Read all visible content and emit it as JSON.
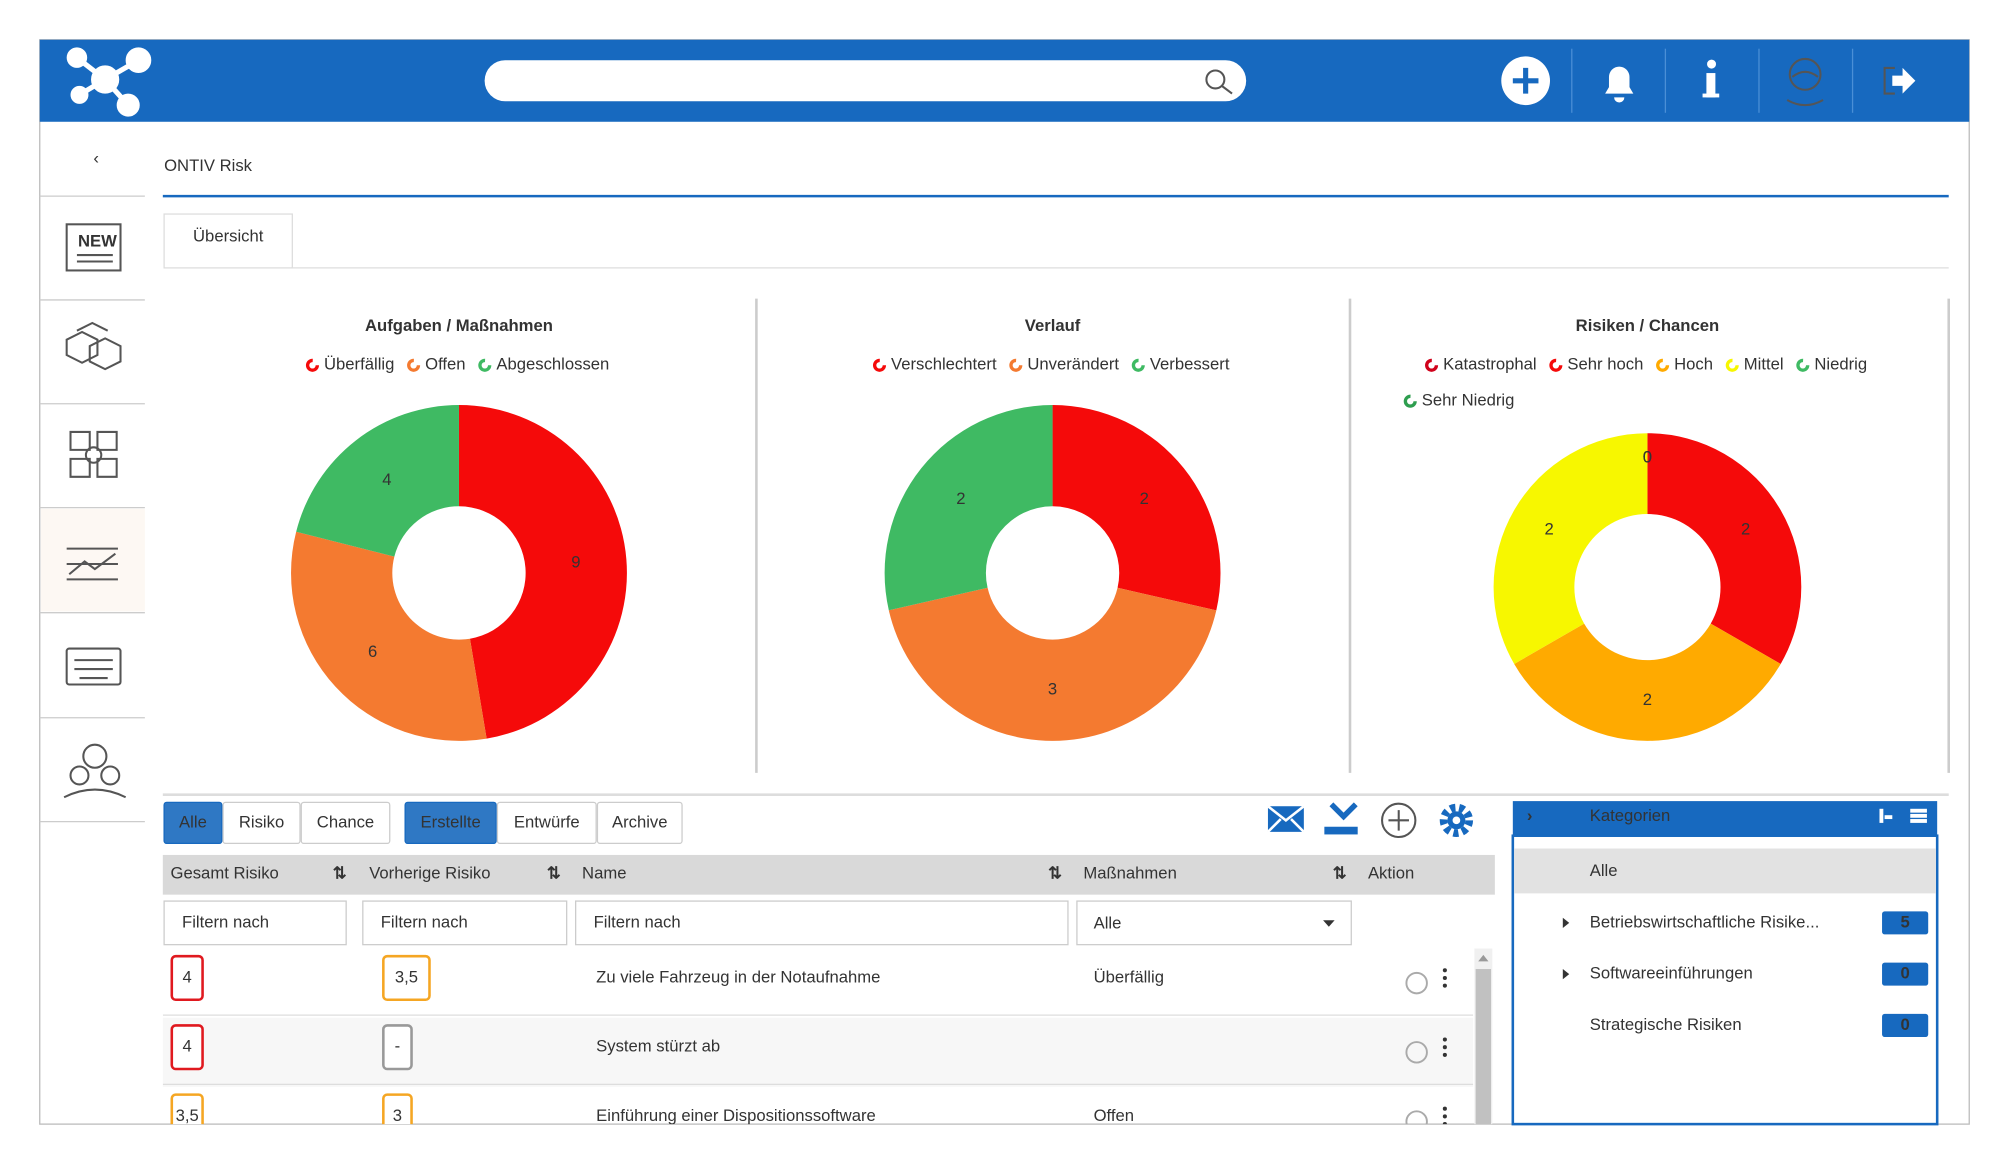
{
  "brand_badge": "NEW",
  "page_title": "ONTIV Risk",
  "tab": "Übersicht",
  "chart_data": [
    {
      "type": "pie",
      "title": "Aufgaben / Maßnahmen",
      "categories": [
        "Überfällig",
        "Offen",
        "Abgeschlossen"
      ],
      "values": [
        9,
        6,
        4
      ],
      "colors": [
        "#f50a0a",
        "#f47a30",
        "#3fba63"
      ]
    },
    {
      "type": "pie",
      "title": "Verlauf",
      "categories": [
        "Verschlechtert",
        "Unverändert",
        "Verbessert"
      ],
      "values": [
        2,
        3,
        2
      ],
      "colors": [
        "#f50a0a",
        "#f47a30",
        "#3fba63"
      ]
    },
    {
      "type": "pie",
      "title": "Risiken / Chancen",
      "categories": [
        "Katastrophal",
        "Sehr hoch",
        "Hoch",
        "Mittel",
        "Niedrig",
        "Sehr Niedrig"
      ],
      "values": [
        0,
        2,
        2,
        2,
        0,
        0
      ],
      "colors": [
        "#d0021b",
        "#f50a0a",
        "#ffaa00",
        "#f7f700",
        "#3fba63",
        "#2e9e4f"
      ]
    }
  ],
  "toolbar": {
    "types": [
      "Alle",
      "Risiko",
      "Chance"
    ],
    "states": [
      "Erstellte",
      "Entwürfe",
      "Archive"
    ]
  },
  "table": {
    "columns": [
      "Gesamt Risiko",
      "Vorherige Risiko",
      "Name",
      "Maßnahmen",
      "Aktion"
    ],
    "filter_placeholder": "Filtern nach",
    "select_value": "Alle",
    "rows": [
      {
        "total": "4",
        "total_color": "#e0191f",
        "previous": "3,5",
        "previous_color": "#f5a623",
        "name": "Zu viele Fahrzeug in der Notaufnahme",
        "status": "Überfällig",
        "status_color": "#f50a0a"
      },
      {
        "total": "4",
        "total_color": "#e0191f",
        "previous": "-",
        "previous_color": "#999999",
        "name": "System stürzt ab"
      },
      {
        "total": "3,5",
        "total_color": "#f5a623",
        "previous": "3",
        "previous_color": "#f5a623",
        "name": "Einführung einer Dispositionssoftware",
        "status": "Offen",
        "status_color": "#f5a623"
      }
    ]
  },
  "categories": {
    "title": "Kategorien",
    "all": "Alle",
    "items": [
      {
        "label": "Betriebswirtschaftliche Risike...",
        "count": 5,
        "expandable": true
      },
      {
        "label": "Softwareeinführungen",
        "count": 0,
        "expandable": true
      },
      {
        "label": "Strategische Risiken",
        "count": 0,
        "expandable": false
      }
    ]
  }
}
